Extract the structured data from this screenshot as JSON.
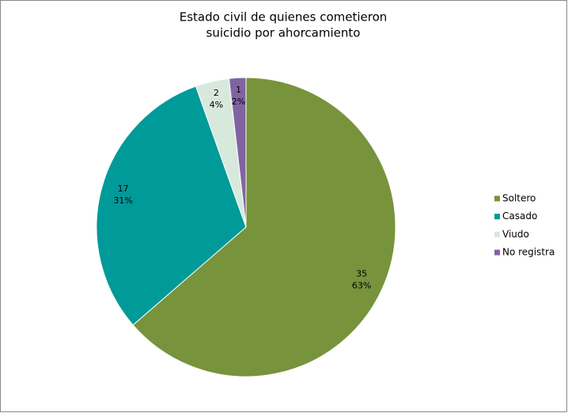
{
  "chart_data": {
    "type": "pie",
    "title": [
      "Estado civil de quienes cometieron",
      "suicidio por ahorcamiento"
    ],
    "categories": [
      "Soltero",
      "Casado",
      "Viudo",
      "No registra"
    ],
    "values": [
      35,
      17,
      2,
      1
    ],
    "percent_labels": [
      "63%",
      "31%",
      "4%",
      "2%"
    ],
    "colors": [
      "#77933c",
      "#009a99",
      "#d7e9dc",
      "#8064a2"
    ],
    "legend": "right"
  }
}
